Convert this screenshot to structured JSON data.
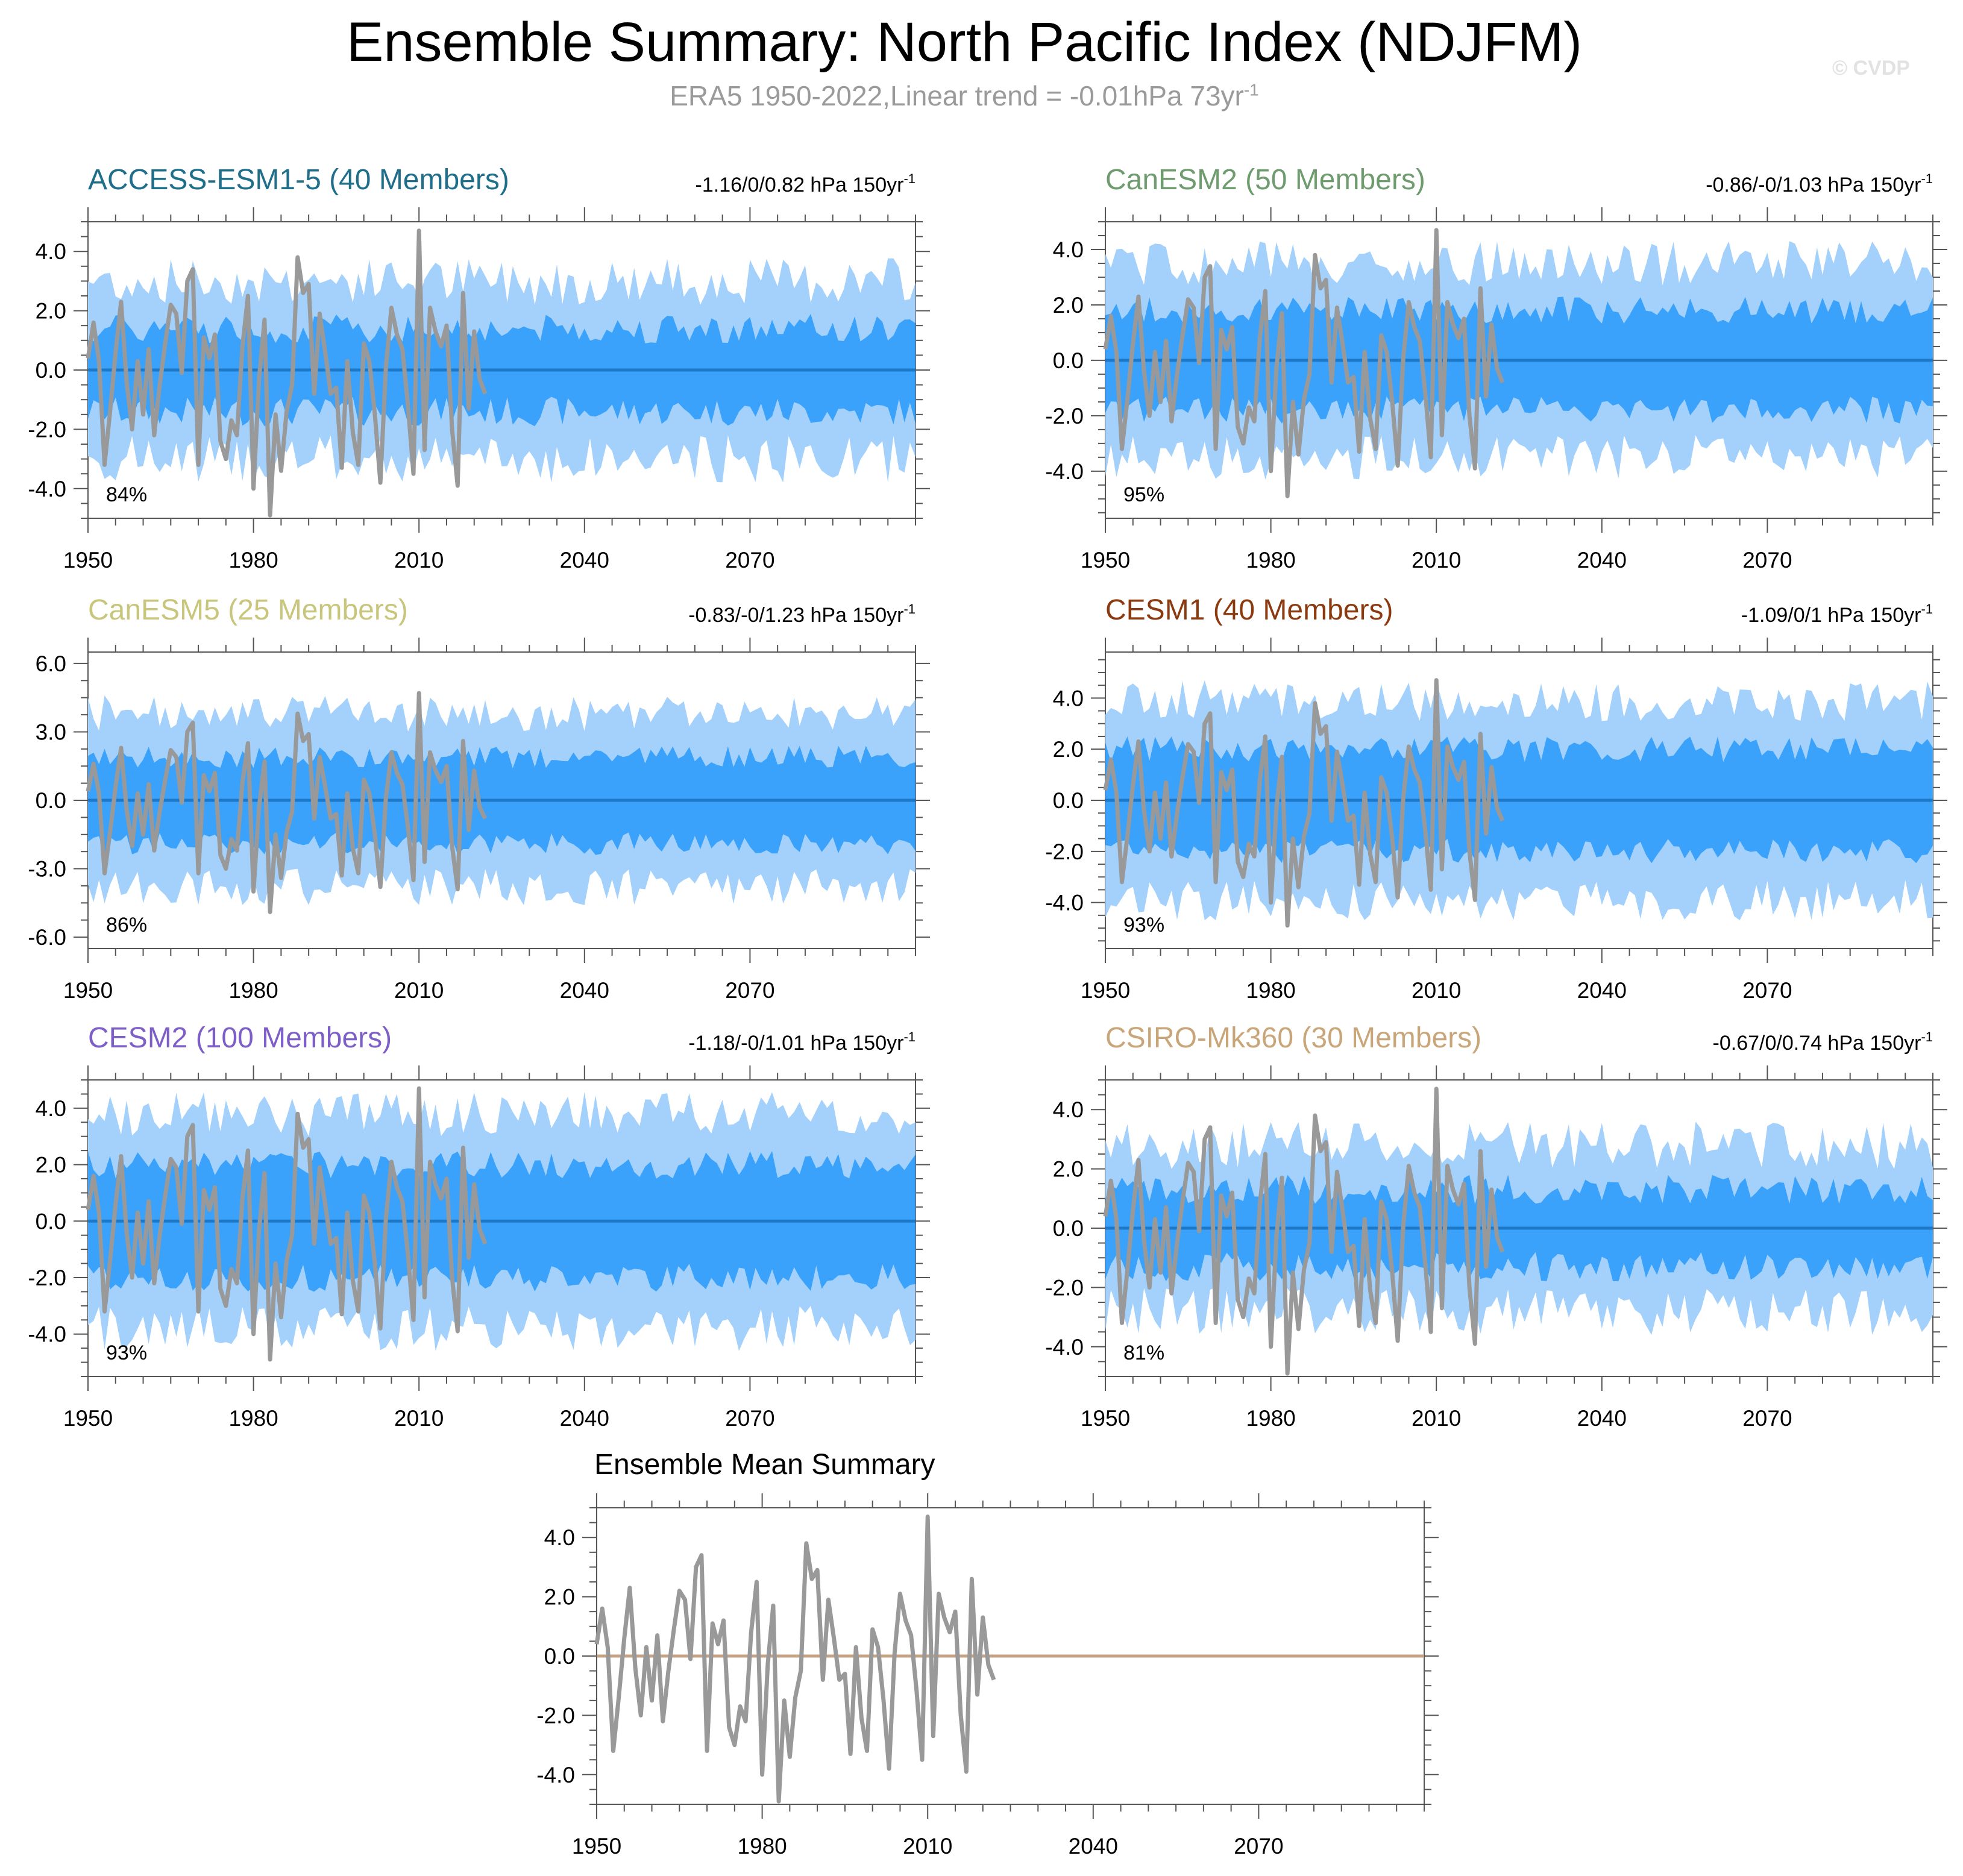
{
  "title": "Ensemble Summary: North Pacific Index (NDJFM)",
  "subtitle": {
    "text": "ERA5 1950-2022,Linear trend = -0.01hPa 73yr",
    "sup": "-1"
  },
  "watermark": "© CVDP",
  "colors": {
    "band_outer": "#a3d1fb",
    "band_inner": "#3aa2fb",
    "mean_line": "#1e78c8",
    "obs_line": "#999999",
    "mean_summary_line": "#c4a282"
  },
  "observations": {
    "name": "ERA5",
    "years": [
      1950,
      2022
    ],
    "values": [
      0.4,
      1.6,
      0.3,
      -3.2,
      -1.4,
      0.6,
      2.3,
      -0.4,
      -2.0,
      0.3,
      -1.5,
      0.7,
      -2.2,
      -0.5,
      0.9,
      2.2,
      1.9,
      -0.1,
      3.0,
      3.4,
      -3.2,
      1.1,
      0.4,
      1.2,
      -2.4,
      -3.0,
      -1.7,
      -2.2,
      0.8,
      2.5,
      -4.0,
      -0.3,
      1.7,
      -4.9,
      -1.5,
      -3.4,
      -1.4,
      -0.5,
      3.8,
      2.6,
      2.9,
      -0.8,
      1.9,
      0.6,
      -0.8,
      -0.6,
      -3.3,
      0.3,
      -2.1,
      -3.2,
      0.9,
      0.3,
      -1.5,
      -3.8,
      0.1,
      2.1,
      1.2,
      0.7,
      -1.2,
      -3.5,
      4.7,
      -2.7,
      2.1,
      1.3,
      0.8,
      1.5,
      -2.0,
      -3.9,
      2.6,
      -1.3,
      1.3,
      -0.3,
      -0.8
    ]
  },
  "panels": [
    {
      "model": "ACCESS-ESM1-5",
      "members_label": "(40 Members)",
      "title_color": "#1f6e8a",
      "trend": "-1.16/0/0.82 hPa 150yr",
      "trend_sup": "-1",
      "pct": "84%",
      "chart_data": {
        "type": "area",
        "x_range": [
          1950,
          2100
        ],
        "ylim": [
          -5.0,
          5.0
        ],
        "yticks": [
          -4.0,
          -2.0,
          0.0,
          2.0,
          4.0
        ],
        "ytick_labels": [
          "-4.0",
          "-2.0",
          "0.0",
          "2.0",
          "4.0"
        ],
        "xticks": [
          1950,
          1980,
          2010,
          2040,
          2070
        ],
        "band_inner_half": 1.4,
        "band_outer_half": 3.0
      }
    },
    {
      "model": "CanESM2",
      "members_label": "(50 Members)",
      "title_color": "#6e9c6e",
      "trend": "-0.86/-0/1.03 hPa 150yr",
      "trend_sup": "-1",
      "pct": "95%",
      "chart_data": {
        "type": "area",
        "x_range": [
          1950,
          2100
        ],
        "ylim": [
          -5.7,
          5.0
        ],
        "yticks": [
          -4.0,
          -2.0,
          0.0,
          2.0,
          4.0
        ],
        "ytick_labels": [
          "-4.0",
          "-2.0",
          "0.0",
          "2.0",
          "4.0"
        ],
        "xticks": [
          1950,
          1980,
          2010,
          2040,
          2070
        ],
        "band_inner_half": 1.8,
        "band_outer_half": 3.5
      }
    },
    {
      "model": "CanESM5",
      "members_label": "(25 Members)",
      "title_color": "#c8c67c",
      "trend": "-0.83/-0/1.23 hPa 150yr",
      "trend_sup": "-1",
      "pct": "86%",
      "chart_data": {
        "type": "area",
        "x_range": [
          1950,
          2100
        ],
        "ylim": [
          -6.5,
          6.5
        ],
        "yticks": [
          -6.0,
          -3.0,
          0.0,
          3.0,
          6.0
        ],
        "ytick_labels": [
          "-6.0",
          "-3.0",
          "0.0",
          "3.0",
          "6.0"
        ],
        "xticks": [
          1950,
          1980,
          2010,
          2040,
          2070
        ],
        "band_inner_half": 1.9,
        "band_outer_half": 3.8
      }
    },
    {
      "model": "CESM1",
      "members_label": "(40 Members)",
      "title_color": "#8b3a0f",
      "trend": "-1.09/0/1 hPa 150yr",
      "trend_sup": "-1",
      "pct": "93%",
      "chart_data": {
        "type": "area",
        "x_range": [
          1950,
          2100
        ],
        "ylim": [
          -5.8,
          5.8
        ],
        "yticks": [
          -4.0,
          -2.0,
          0.0,
          2.0,
          4.0
        ],
        "ytick_labels": [
          "-4.0",
          "-2.0",
          "0.0",
          "2.0",
          "4.0"
        ],
        "xticks": [
          1950,
          1980,
          2010,
          2040,
          2070
        ],
        "band_inner_half": 2.0,
        "band_outer_half": 3.9
      }
    },
    {
      "model": "CESM2",
      "members_label": "(100 Members)",
      "title_color": "#7d5fc7",
      "trend": "-1.18/-0/1.01 hPa 150yr",
      "trend_sup": "-1",
      "pct": "93%",
      "chart_data": {
        "type": "area",
        "x_range": [
          1950,
          2100
        ],
        "ylim": [
          -5.5,
          5.0
        ],
        "yticks": [
          -4.0,
          -2.0,
          0.0,
          2.0,
          4.0
        ],
        "ytick_labels": [
          "-4.0",
          "-2.0",
          "0.0",
          "2.0",
          "4.0"
        ],
        "xticks": [
          1950,
          1980,
          2010,
          2040,
          2070
        ],
        "band_inner_half": 2.0,
        "band_outer_half": 3.8
      }
    },
    {
      "model": "CSIRO-Mk360",
      "members_label": "(30 Members)",
      "title_color": "#c9a57a",
      "trend": "-0.67/0/0.74 hPa 150yr",
      "trend_sup": "-1",
      "pct": "81%",
      "chart_data": {
        "type": "area",
        "x_range": [
          1950,
          2100
        ],
        "ylim": [
          -5.0,
          5.0
        ],
        "yticks": [
          -4.0,
          -2.0,
          0.0,
          2.0,
          4.0
        ],
        "ytick_labels": [
          "-4.0",
          "-2.0",
          "0.0",
          "2.0",
          "4.0"
        ],
        "xticks": [
          1950,
          1980,
          2010,
          2040,
          2070
        ],
        "band_inner_half": 1.3,
        "band_outer_half": 2.8
      }
    }
  ],
  "ensemble_mean_summary": {
    "title": "Ensemble Mean Summary",
    "chart_data": {
      "type": "line",
      "x_range": [
        1950,
        2100
      ],
      "ylim": [
        -5.0,
        5.0
      ],
      "yticks": [
        -4.0,
        -2.0,
        0.0,
        2.0,
        4.0
      ],
      "ytick_labels": [
        "-4.0",
        "-2.0",
        "0.0",
        "2.0",
        "4.0"
      ],
      "xticks": [
        1950,
        1980,
        2010,
        2040,
        2070
      ],
      "mean_value": 0.0
    }
  }
}
